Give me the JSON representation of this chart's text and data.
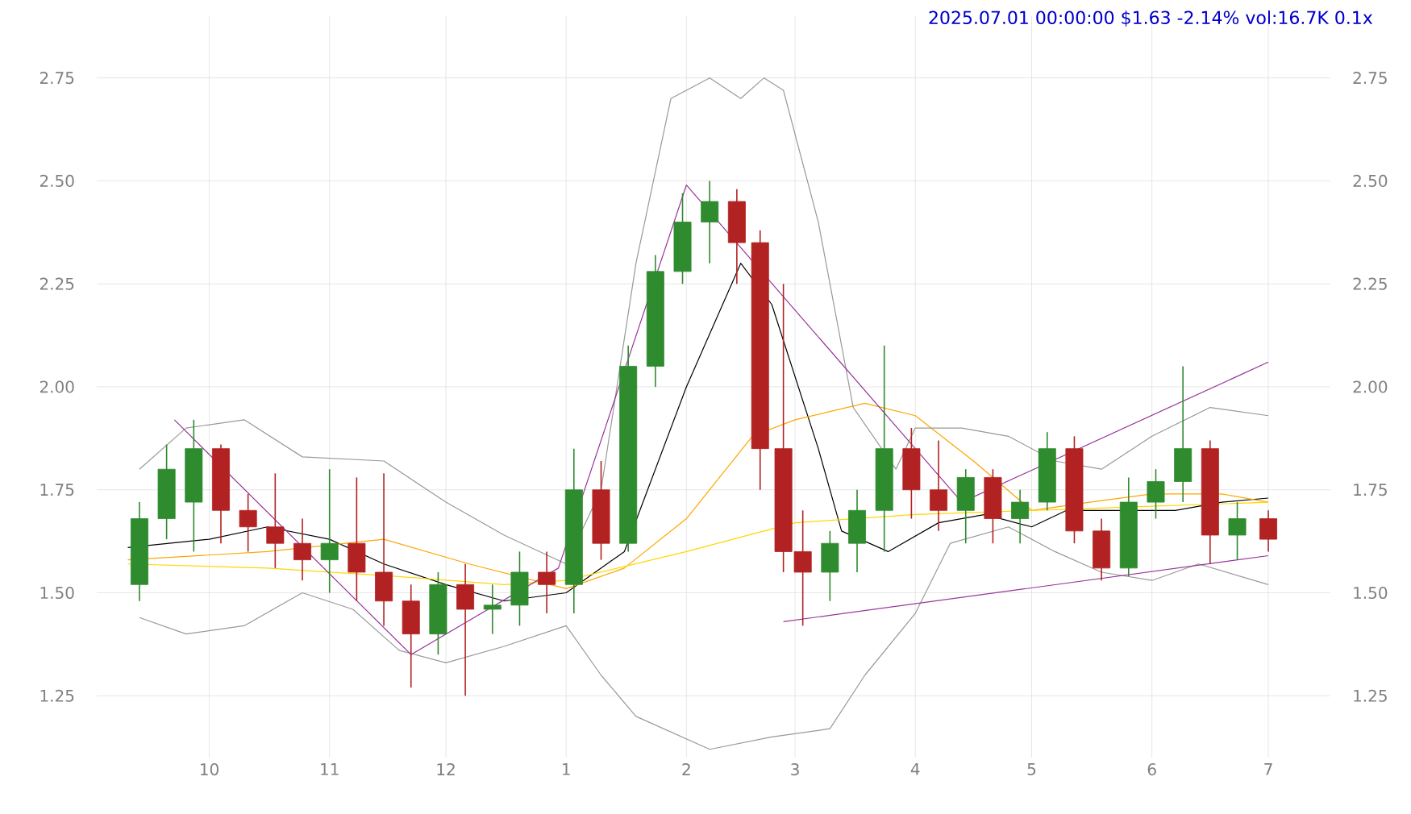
{
  "chart_data": {
    "type": "candlestick",
    "title": "2025.07.01 00:00:00 $1.63 -2.14% vol:16.7K 0.1x",
    "x": [
      "2024-09-13",
      "2024-09-20",
      "2024-09-27",
      "2024-10-04",
      "2024-10-11",
      "2024-10-18",
      "2024-10-25",
      "2024-11-01",
      "2024-11-08",
      "2024-11-15",
      "2024-11-22",
      "2024-11-29",
      "2024-12-06",
      "2024-12-13",
      "2024-12-20",
      "2024-12-27",
      "2025-01-03",
      "2025-01-10",
      "2025-01-17",
      "2025-01-24",
      "2025-01-31",
      "2025-02-07",
      "2025-02-14",
      "2025-02-20",
      "2025-02-26",
      "2025-03-03",
      "2025-03-10",
      "2025-03-17",
      "2025-03-24",
      "2025-03-31",
      "2025-04-07",
      "2025-04-14",
      "2025-04-21",
      "2025-04-28",
      "2025-05-05",
      "2025-05-12",
      "2025-05-19",
      "2025-05-26",
      "2025-06-02",
      "2025-06-09",
      "2025-06-16",
      "2025-06-23",
      "2025-07-01"
    ],
    "ohlc": [
      [
        1.52,
        1.72,
        1.48,
        1.68
      ],
      [
        1.68,
        1.86,
        1.63,
        1.8
      ],
      [
        1.72,
        1.92,
        1.6,
        1.85
      ],
      [
        1.85,
        1.86,
        1.62,
        1.7
      ],
      [
        1.7,
        1.74,
        1.6,
        1.66
      ],
      [
        1.66,
        1.79,
        1.56,
        1.62
      ],
      [
        1.62,
        1.68,
        1.53,
        1.58
      ],
      [
        1.58,
        1.8,
        1.5,
        1.62
      ],
      [
        1.62,
        1.78,
        1.48,
        1.55
      ],
      [
        1.55,
        1.79,
        1.42,
        1.48
      ],
      [
        1.48,
        1.52,
        1.27,
        1.4
      ],
      [
        1.4,
        1.55,
        1.35,
        1.52
      ],
      [
        1.52,
        1.57,
        1.25,
        1.46
      ],
      [
        1.46,
        1.52,
        1.4,
        1.47
      ],
      [
        1.47,
        1.6,
        1.42,
        1.55
      ],
      [
        1.55,
        1.6,
        1.45,
        1.52
      ],
      [
        1.52,
        1.85,
        1.45,
        1.75
      ],
      [
        1.75,
        1.82,
        1.58,
        1.62
      ],
      [
        1.62,
        2.1,
        1.6,
        2.05
      ],
      [
        2.05,
        2.32,
        2.0,
        2.28
      ],
      [
        2.28,
        2.47,
        2.25,
        2.4
      ],
      [
        2.4,
        2.5,
        2.3,
        2.45
      ],
      [
        2.45,
        2.48,
        2.25,
        2.35
      ],
      [
        2.35,
        2.38,
        1.75,
        1.85
      ],
      [
        1.85,
        2.25,
        1.55,
        1.6
      ],
      [
        1.6,
        1.7,
        1.42,
        1.55
      ],
      [
        1.55,
        1.65,
        1.48,
        1.62
      ],
      [
        1.62,
        1.75,
        1.55,
        1.7
      ],
      [
        1.7,
        2.1,
        1.6,
        1.85
      ],
      [
        1.85,
        1.9,
        1.68,
        1.75
      ],
      [
        1.75,
        1.87,
        1.65,
        1.7
      ],
      [
        1.7,
        1.8,
        1.62,
        1.78
      ],
      [
        1.78,
        1.8,
        1.62,
        1.68
      ],
      [
        1.68,
        1.75,
        1.62,
        1.72
      ],
      [
        1.72,
        1.89,
        1.7,
        1.85
      ],
      [
        1.85,
        1.88,
        1.62,
        1.65
      ],
      [
        1.65,
        1.68,
        1.53,
        1.56
      ],
      [
        1.56,
        1.78,
        1.54,
        1.72
      ],
      [
        1.72,
        1.8,
        1.68,
        1.77
      ],
      [
        1.77,
        2.05,
        1.72,
        1.85
      ],
      [
        1.85,
        1.87,
        1.57,
        1.64
      ],
      [
        1.64,
        1.72,
        1.58,
        1.68
      ],
      [
        1.68,
        1.7,
        1.6,
        1.63
      ]
    ],
    "colors": [
      "#2e8b2e",
      "#2e8b2e",
      "#2e8b2e",
      "#b22222",
      "#b22222",
      "#b22222",
      "#b22222",
      "#2e8b2e",
      "#b22222",
      "#b22222",
      "#b22222",
      "#2e8b2e",
      "#b22222",
      "#2e8b2e",
      "#2e8b2e",
      "#b22222",
      "#2e8b2e",
      "#b22222",
      "#2e8b2e",
      "#2e8b2e",
      "#2e8b2e",
      "#2e8b2e",
      "#b22222",
      "#b22222",
      "#b22222",
      "#b22222",
      "#2e8b2e",
      "#2e8b2e",
      "#2e8b2e",
      "#b22222",
      "#b22222",
      "#2e8b2e",
      "#b22222",
      "#2e8b2e",
      "#2e8b2e",
      "#b22222",
      "#b22222",
      "#2e8b2e",
      "#2e8b2e",
      "#2e8b2e",
      "#b22222",
      "#2e8b2e",
      "#b22222"
    ],
    "series": [
      {
        "type": "line",
        "color": "#000000",
        "x": [
          "2024-09-10",
          "2024-10-01",
          "2024-10-16",
          "2024-11-01",
          "2024-11-15",
          "2024-12-01",
          "2024-12-16",
          "2025-01-01",
          "2025-01-16",
          "2025-02-01",
          "2025-02-15",
          "2025-02-23",
          "2025-03-07",
          "2025-03-13",
          "2025-03-25",
          "2025-04-07",
          "2025-04-19",
          "2025-05-01",
          "2025-05-10",
          "2025-05-25",
          "2025-06-07",
          "2025-06-19",
          "2025-07-01"
        ],
        "values": [
          1.61,
          1.63,
          1.66,
          1.63,
          1.57,
          1.52,
          1.48,
          1.5,
          1.6,
          2.0,
          2.3,
          2.2,
          1.85,
          1.65,
          1.6,
          1.67,
          1.69,
          1.66,
          1.7,
          1.7,
          1.7,
          1.72,
          1.73
        ]
      },
      {
        "type": "line",
        "color": "#ffa500",
        "x": [
          "2024-09-10",
          "2024-10-16",
          "2024-11-15",
          "2024-12-07",
          "2025-01-01",
          "2025-01-16",
          "2025-02-01",
          "2025-02-18",
          "2025-03-01",
          "2025-03-19",
          "2025-04-01",
          "2025-04-16",
          "2025-05-01",
          "2025-05-16",
          "2025-06-01",
          "2025-06-19",
          "2025-07-01"
        ],
        "values": [
          1.58,
          1.6,
          1.63,
          1.57,
          1.51,
          1.56,
          1.68,
          1.88,
          1.92,
          1.96,
          1.93,
          1.82,
          1.7,
          1.72,
          1.74,
          1.74,
          1.72
        ]
      },
      {
        "type": "line",
        "color": "#ffd700",
        "x": [
          "2024-09-10",
          "2024-10-16",
          "2024-11-18",
          "2024-12-16",
          "2025-01-01",
          "2025-02-01",
          "2025-03-01",
          "2025-04-01",
          "2025-05-01",
          "2025-06-01",
          "2025-07-01"
        ],
        "values": [
          1.57,
          1.56,
          1.54,
          1.52,
          1.53,
          1.6,
          1.67,
          1.69,
          1.7,
          1.71,
          1.72
        ]
      },
      {
        "type": "line",
        "color": "#999999",
        "x": [
          "2024-09-13",
          "2024-09-25",
          "2024-10-10",
          "2024-10-25",
          "2024-11-15",
          "2024-12-01",
          "2024-12-16",
          "2025-01-01",
          "2025-01-10",
          "2025-01-19",
          "2025-01-28",
          "2025-02-07",
          "2025-02-15",
          "2025-02-21",
          "2025-02-26",
          "2025-03-07",
          "2025-03-16",
          "2025-03-27",
          "2025-04-01",
          "2025-04-13",
          "2025-04-25",
          "2025-05-07",
          "2025-05-19",
          "2025-06-01",
          "2025-06-16",
          "2025-07-01"
        ],
        "values": [
          1.8,
          1.9,
          1.92,
          1.83,
          1.82,
          1.72,
          1.64,
          1.57,
          1.75,
          2.3,
          2.7,
          2.75,
          2.7,
          2.75,
          2.72,
          2.4,
          1.95,
          1.8,
          1.9,
          1.9,
          1.88,
          1.82,
          1.8,
          1.88,
          1.95,
          1.93
        ]
      },
      {
        "type": "line",
        "color": "#999999",
        "x": [
          "2024-09-13",
          "2024-09-25",
          "2024-10-10",
          "2024-10-25",
          "2024-11-07",
          "2024-11-19",
          "2024-12-01",
          "2024-12-16",
          "2025-01-01",
          "2025-01-10",
          "2025-01-19",
          "2025-02-07",
          "2025-02-23",
          "2025-03-10",
          "2025-03-19",
          "2025-04-01",
          "2025-04-10",
          "2025-04-25",
          "2025-05-07",
          "2025-05-19",
          "2025-06-01",
          "2025-06-13",
          "2025-07-01"
        ],
        "values": [
          1.44,
          1.4,
          1.42,
          1.5,
          1.46,
          1.36,
          1.33,
          1.37,
          1.42,
          1.3,
          1.2,
          1.12,
          1.15,
          1.17,
          1.3,
          1.45,
          1.62,
          1.66,
          1.6,
          1.55,
          1.53,
          1.57,
          1.52
        ]
      },
      {
        "type": "line",
        "color": "#993399",
        "x": [
          "2024-09-22",
          "2024-11-22",
          "2024-12-30",
          "2025-02-01",
          "2025-04-13",
          "2025-07-01"
        ],
        "values": [
          1.92,
          1.35,
          1.56,
          2.49,
          1.72,
          2.06
        ]
      },
      {
        "type": "line",
        "color": "#993399",
        "x": [
          "2025-02-26",
          "2025-07-01"
        ],
        "values": [
          1.43,
          1.59
        ]
      }
    ],
    "xlim": [
      "2024-09-02",
      "2025-07-17"
    ],
    "ylim": [
      1.1,
      2.9
    ],
    "xticks": [
      {
        "value": "2024-10-01",
        "label": "10"
      },
      {
        "value": "2024-11-01",
        "label": "11"
      },
      {
        "value": "2024-12-01",
        "label": "12"
      },
      {
        "value": "2025-01-01",
        "label": "1"
      },
      {
        "value": "2025-02-01",
        "label": "2"
      },
      {
        "value": "2025-03-01",
        "label": "3"
      },
      {
        "value": "2025-04-01",
        "label": "4"
      },
      {
        "value": "2025-05-01",
        "label": "5"
      },
      {
        "value": "2025-06-01",
        "label": "6"
      },
      {
        "value": "2025-07-01",
        "label": "7"
      }
    ],
    "yticks": [
      1.25,
      {
        "value": 1.5,
        "label": "1.50"
      },
      1.75,
      {
        "value": 2.0,
        "label": "2.00"
      },
      2.25,
      {
        "value": 2.5,
        "label": "2.50"
      },
      2.75
    ],
    "y2lim": [
      1.1,
      2.9
    ],
    "y2ticks": [
      1.25,
      {
        "value": 1.5,
        "label": "1.50"
      },
      1.75,
      {
        "value": 2.0,
        "label": "2.00"
      },
      2.25,
      {
        "value": 2.5,
        "label": "2.50"
      },
      2.75
    ],
    "grid": true
  }
}
